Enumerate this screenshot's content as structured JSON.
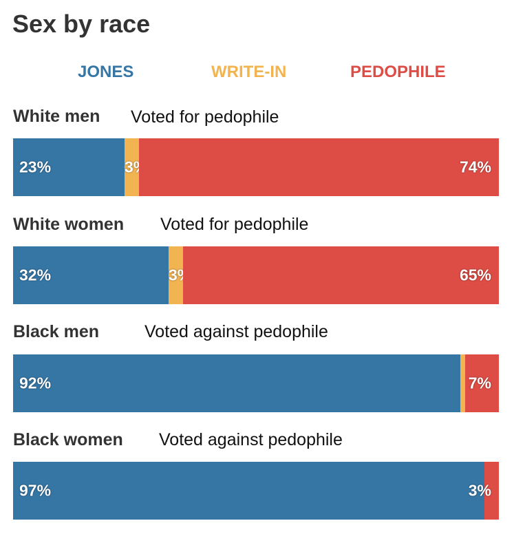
{
  "title": "Sex by race",
  "colors": {
    "jones": "#3576a5",
    "write_in": "#f2b450",
    "pedophile": "#dd4d45"
  },
  "legend": [
    {
      "label": "JONES",
      "color": "#3576a5"
    },
    {
      "label": "WRITE-IN",
      "color": "#f2b450"
    },
    {
      "label": "PEDOPHILE",
      "color": "#dd4d45"
    }
  ],
  "chart_data": {
    "type": "bar",
    "stacked": true,
    "orientation": "horizontal",
    "title": "Sex by race",
    "categories": [
      "White men",
      "White women",
      "Black men",
      "Black women"
    ],
    "notes": [
      "Voted for pedophile",
      "Voted for pedophile",
      "Voted against pedophile",
      "Voted against pedophile"
    ],
    "series": [
      {
        "name": "JONES",
        "values": [
          23,
          32,
          92,
          97
        ]
      },
      {
        "name": "WRITE-IN",
        "values": [
          3,
          3,
          1,
          0
        ]
      },
      {
        "name": "PEDOPHILE",
        "values": [
          74,
          65,
          7,
          3
        ]
      }
    ],
    "labels": [
      [
        "23%",
        "3%",
        "74%"
      ],
      [
        "32%",
        "3%",
        "65%"
      ],
      [
        "92%",
        "",
        "7%"
      ],
      [
        "97%",
        "",
        "3%"
      ]
    ],
    "legend_position": "top"
  }
}
